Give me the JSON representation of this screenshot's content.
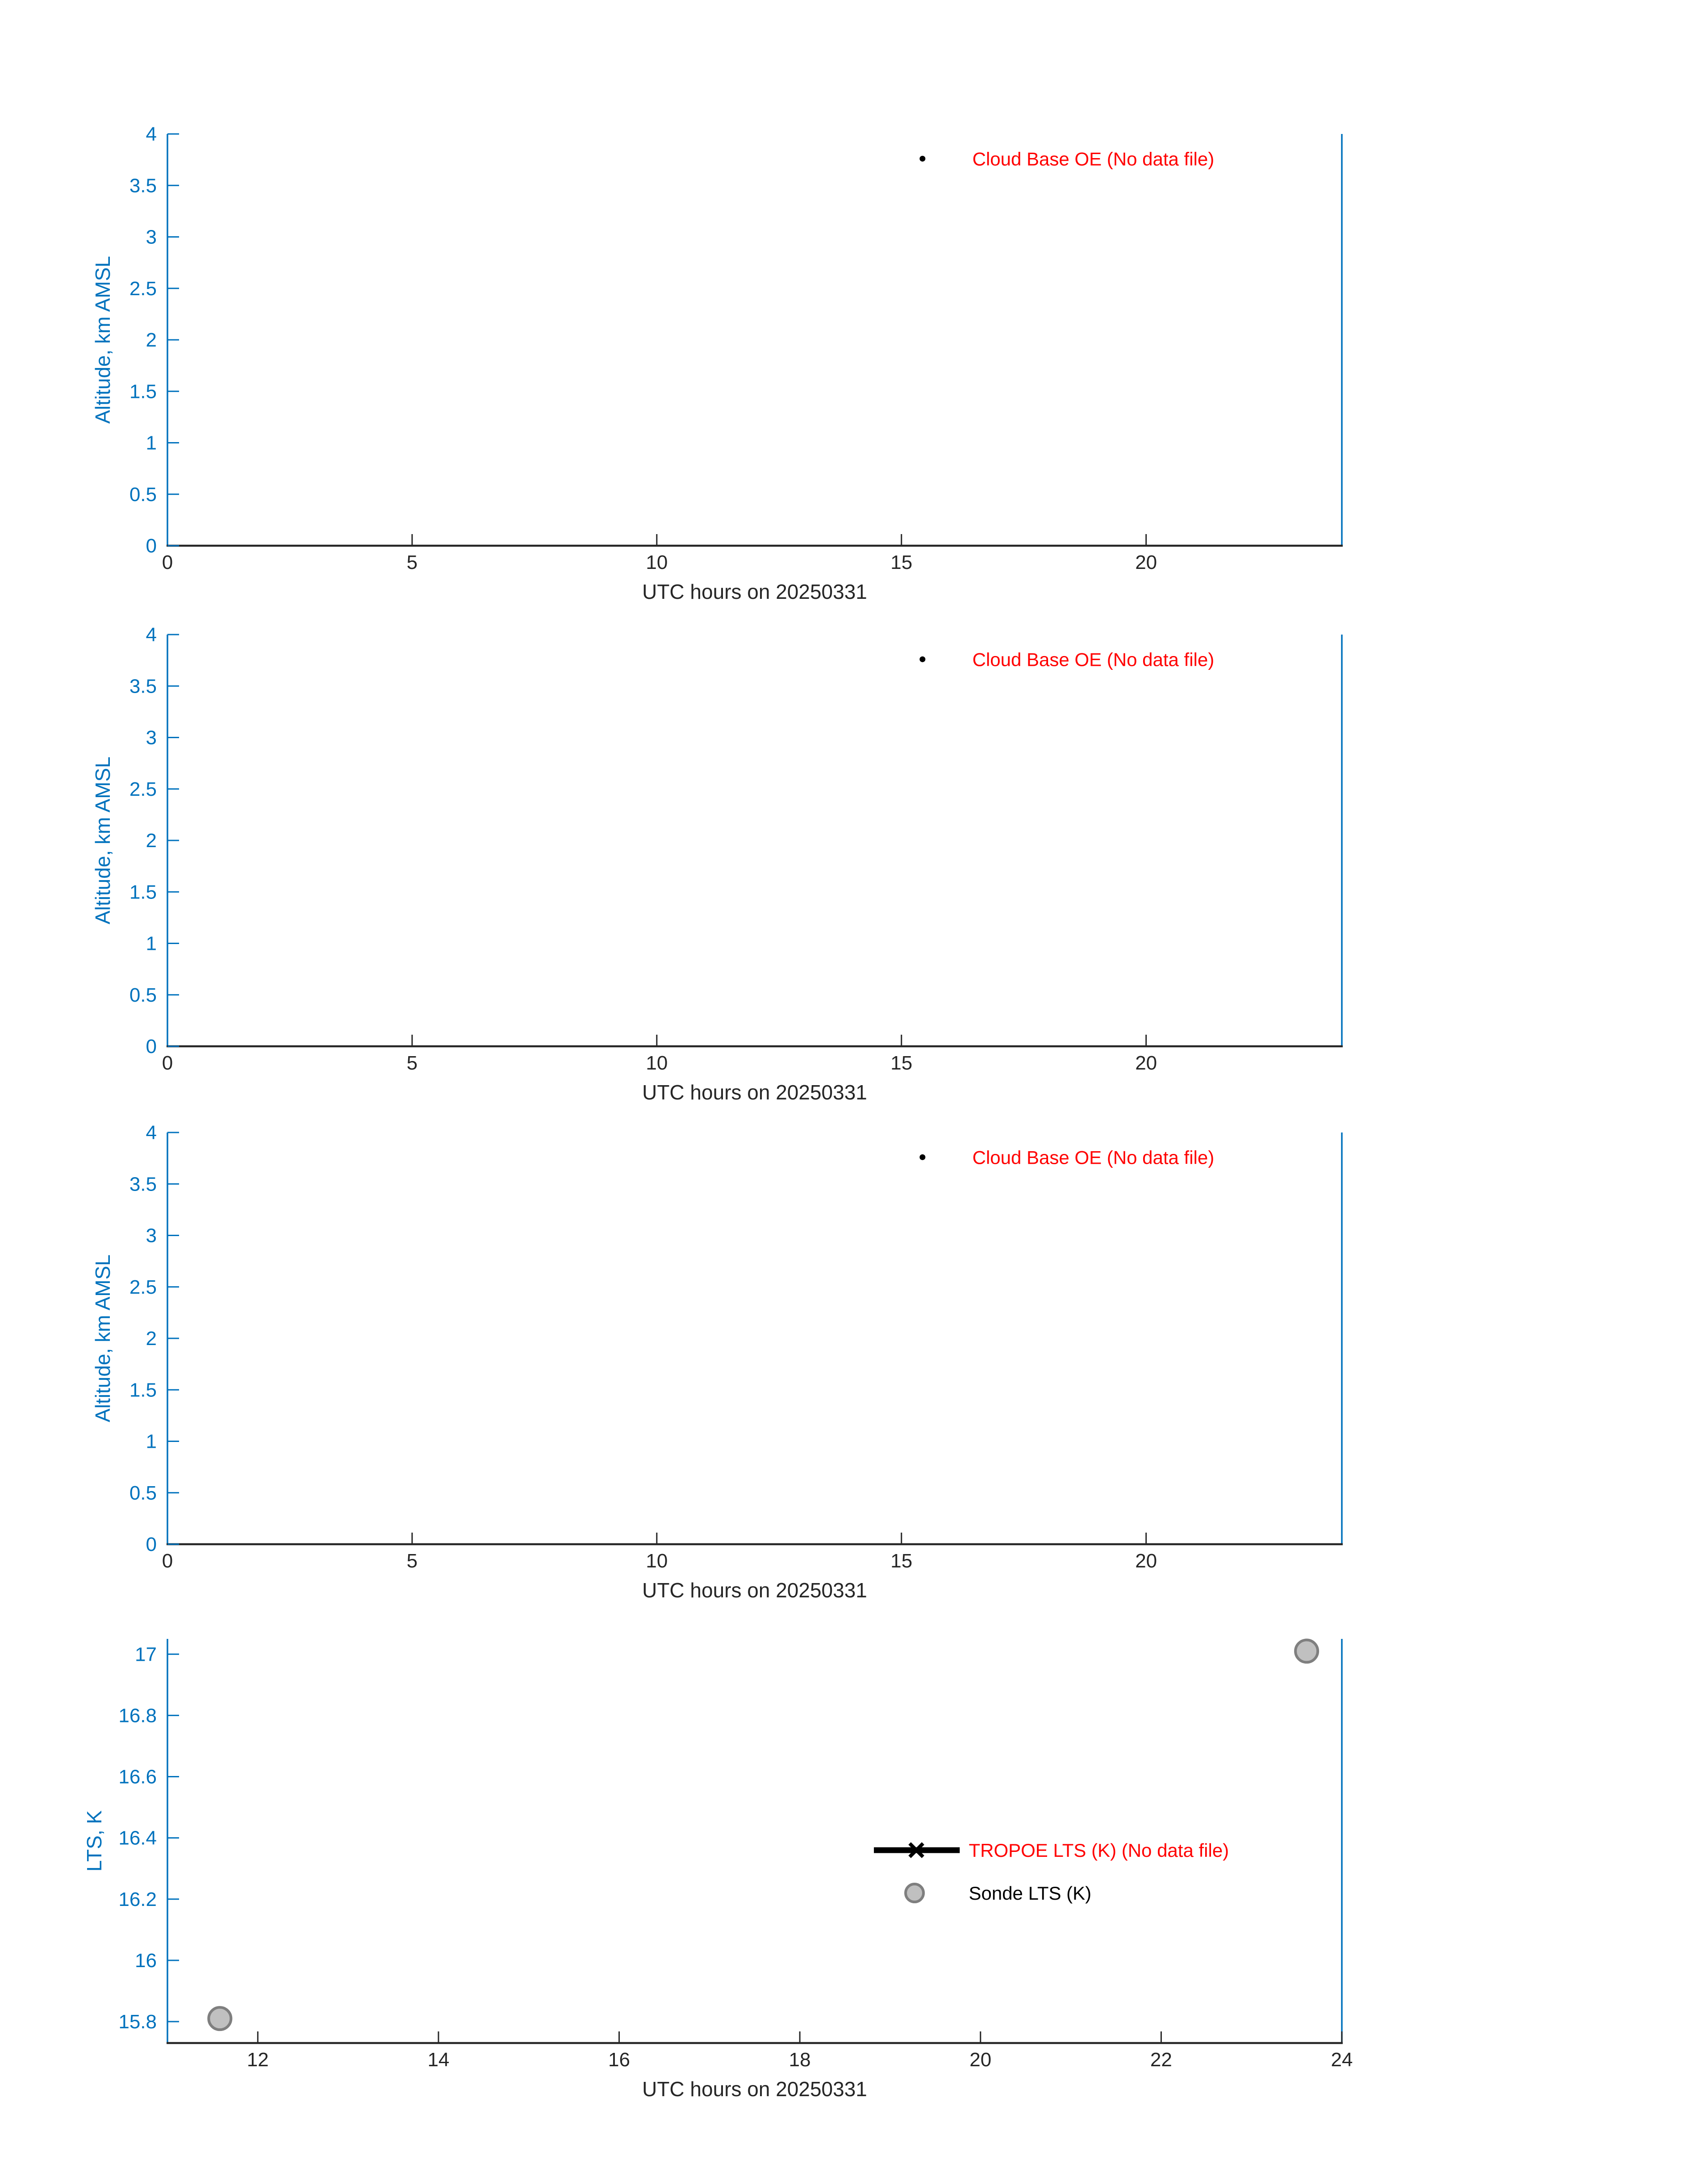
{
  "figure": {
    "background": "#ffffff",
    "description": "Four stacked time-series panels: three empty Cloud Base OE altitude panels and one LTS panel with two sonde data points"
  },
  "colors": {
    "y_axis_blue": "#0072BD",
    "x_axis_dark": "#262626",
    "no_data_red": "#FF0000",
    "marker_black": "#000000",
    "sonde_fill": "#C0C0C0",
    "sonde_edge": "#7F7F7F"
  },
  "chart_data": {
    "charts": [
      {
        "id": "cloud-base-oe-panel-1",
        "type": "scatter",
        "title": "",
        "xlabel": "UTC hours on 20250331",
        "ylabel": "Altitude, km AMSL",
        "xlim": [
          0,
          24
        ],
        "ylim": [
          0,
          4
        ],
        "xticks": [
          0,
          5,
          10,
          15,
          20
        ],
        "yticks": [
          0,
          0.5,
          1,
          1.5,
          2,
          2.5,
          3,
          3.5,
          4
        ],
        "grid": false,
        "y_axis_color": "#0072BD",
        "x_axis_color": "#262626",
        "legend": {
          "box": false,
          "location": "upper-right-inside",
          "entries": [
            {
              "label": "Cloud Base OE (No data file)",
              "label_color": "#FF0000",
              "marker": "point",
              "marker_color": "#000000",
              "marker_xy": [
                15.43,
                3.76
              ],
              "text_x": 16.45
            }
          ]
        },
        "series": []
      },
      {
        "id": "cloud-base-oe-panel-2",
        "type": "scatter",
        "title": "",
        "xlabel": "UTC hours on 20250331",
        "ylabel": "Altitude, km AMSL",
        "xlim": [
          0,
          24
        ],
        "ylim": [
          0,
          4
        ],
        "xticks": [
          0,
          5,
          10,
          15,
          20
        ],
        "yticks": [
          0,
          0.5,
          1,
          1.5,
          2,
          2.5,
          3,
          3.5,
          4
        ],
        "grid": false,
        "y_axis_color": "#0072BD",
        "x_axis_color": "#262626",
        "legend": {
          "box": false,
          "location": "upper-right-inside",
          "entries": [
            {
              "label": "Cloud Base OE (No data file)",
              "label_color": "#FF0000",
              "marker": "point",
              "marker_color": "#000000",
              "marker_xy": [
                15.43,
                3.76
              ],
              "text_x": 16.45
            }
          ]
        },
        "series": []
      },
      {
        "id": "cloud-base-oe-panel-3",
        "type": "scatter",
        "title": "",
        "xlabel": "UTC hours on 20250331",
        "ylabel": "Altitude, km AMSL",
        "xlim": [
          0,
          24
        ],
        "ylim": [
          0,
          4
        ],
        "xticks": [
          0,
          5,
          10,
          15,
          20
        ],
        "yticks": [
          0,
          0.5,
          1,
          1.5,
          2,
          2.5,
          3,
          3.5,
          4
        ],
        "grid": false,
        "y_axis_color": "#0072BD",
        "x_axis_color": "#262626",
        "legend": {
          "box": false,
          "location": "upper-right-inside",
          "entries": [
            {
              "label": "Cloud Base OE (No data file)",
              "label_color": "#FF0000",
              "marker": "point",
              "marker_color": "#000000",
              "marker_xy": [
                15.43,
                3.76
              ],
              "text_x": 16.45
            }
          ]
        },
        "series": []
      },
      {
        "id": "lts-panel",
        "type": "scatter",
        "title": "",
        "xlabel": "UTC hours on 20250331",
        "ylabel": "LTS, K",
        "xlim": [
          11,
          24
        ],
        "ylim": [
          15.73,
          17.05
        ],
        "xticks": [
          12,
          14,
          16,
          18,
          20,
          22,
          24
        ],
        "yticks": [
          15.8,
          16,
          16.2,
          16.4,
          16.6,
          16.8,
          17
        ],
        "grid": false,
        "y_axis_color": "#0072BD",
        "x_axis_color": "#262626",
        "legend": {
          "box": false,
          "location": "center-inside",
          "entries": [
            {
              "label": "TROPOE LTS (K) (No data file)",
              "label_color": "#FF0000",
              "marker": "line-x",
              "marker_color": "#000000",
              "marker_xy": [
                19.29,
                16.36
              ],
              "line_span_x": [
                18.82,
                19.77
              ],
              "text_x": 19.87
            },
            {
              "label": "Sonde LTS (K)",
              "label_color": "#000000",
              "marker": "circle",
              "marker_fill": "#C0C0C0",
              "marker_edge": "#7F7F7F",
              "marker_xy": [
                19.27,
                16.22
              ],
              "text_x": 19.87
            }
          ]
        },
        "series": [
          {
            "name": "Sonde LTS (K)",
            "type": "scatter",
            "marker": "circle",
            "marker_fill": "#C0C0C0",
            "marker_edge": "#7F7F7F",
            "points": [
              [
                11.58,
                15.81
              ],
              [
                23.61,
                17.01
              ]
            ]
          }
        ]
      }
    ]
  }
}
